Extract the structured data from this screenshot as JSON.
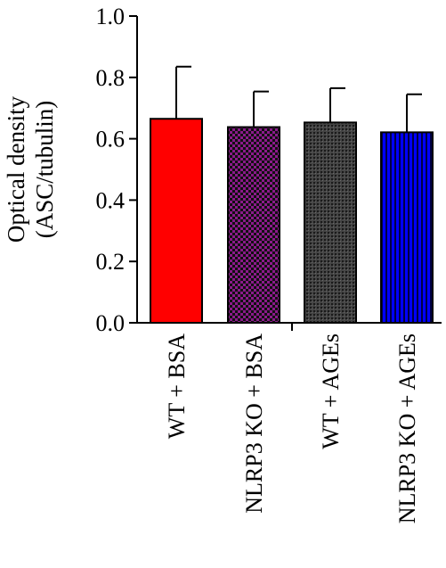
{
  "chart_data": {
    "type": "bar",
    "title": "",
    "ylabel_lines": [
      "Optical density",
      "(ASC/tubulin)"
    ],
    "xlabel": "",
    "ylim": [
      0.0,
      1.0
    ],
    "yticks": [
      "0.0",
      "0.2",
      "0.4",
      "0.6",
      "0.8",
      "1.0"
    ],
    "grid": false,
    "categories": [
      "WT + BSA",
      "NLRP3 KO + BSA",
      "WT + AGEs",
      "NLRP3 KO + AGEs"
    ],
    "values": [
      0.665,
      0.638,
      0.653,
      0.621
    ],
    "error_upper": [
      0.835,
      0.754,
      0.765,
      0.745
    ],
    "bar_styles": [
      {
        "fill": "#ff0000",
        "pattern": "solid"
      },
      {
        "fill": "#8b1a8b",
        "pattern": "checker"
      },
      {
        "fill": "#3a3a3a",
        "pattern": "dots"
      },
      {
        "fill": "#0000ff",
        "pattern": "vertical-stripes"
      }
    ]
  }
}
